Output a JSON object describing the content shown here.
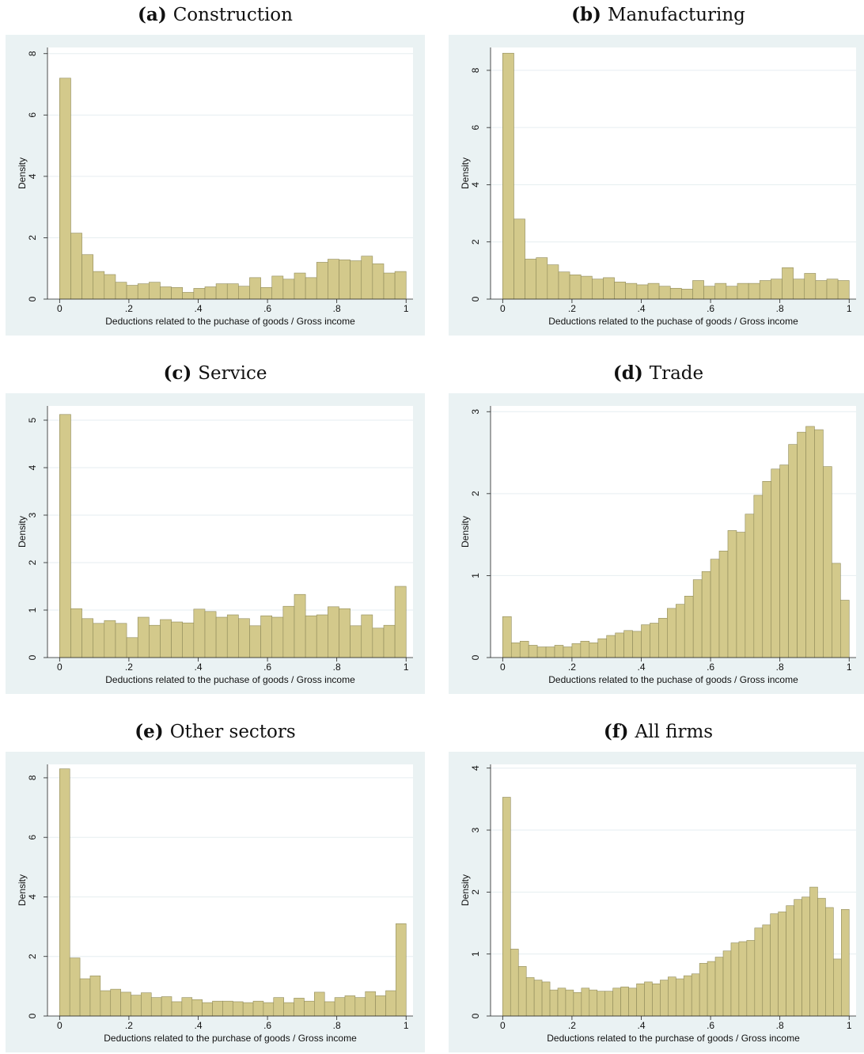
{
  "chart_data": [
    {
      "type": "histogram",
      "label": "(a)",
      "title": "Construction",
      "ylabel": "Density",
      "xlabel": "Deductions related to the puchase of goods / Gross income",
      "color": "#d3c98b",
      "grid": true,
      "bins": [
        0,
        0.0323,
        0.0645,
        0.0968,
        0.129,
        0.1613,
        0.1935,
        0.2258,
        0.2581,
        0.2903,
        0.3226,
        0.3548,
        0.3871,
        0.4194,
        0.4516,
        0.4839,
        0.5161,
        0.5484,
        0.5806,
        0.6129,
        0.6452,
        0.6774,
        0.7097,
        0.7419,
        0.7742,
        0.8065,
        0.8387,
        0.871,
        0.9032,
        0.9355,
        0.9677,
        1
      ],
      "values": [
        7.2,
        2.15,
        1.45,
        0.9,
        0.8,
        0.55,
        0.45,
        0.5,
        0.55,
        0.4,
        0.38,
        0.22,
        0.35,
        0.4,
        0.5,
        0.5,
        0.42,
        0.7,
        0.38,
        0.75,
        0.65,
        0.85,
        0.7,
        1.2,
        1.3,
        1.28,
        1.25,
        1.4,
        1.15,
        0.85,
        0.9
      ],
      "xlim": [
        -0.035,
        1.02
      ],
      "ylim": [
        0,
        8.2
      ],
      "yticks": [
        0,
        2,
        4,
        6,
        8
      ],
      "xticks": [
        0,
        {
          "value": 0.2,
          "label": ".2"
        },
        {
          "value": 0.4,
          "label": ".4"
        },
        {
          "value": 0.6,
          "label": ".6"
        },
        {
          "value": 0.8,
          "label": ".8"
        },
        1
      ]
    },
    {
      "type": "histogram",
      "label": "(b)",
      "title": "Manufacturing",
      "ylabel": "Density",
      "xlabel": "Deductions related to the puchase of goods / Gross income",
      "color": "#d3c98b",
      "grid": true,
      "bins": [
        0,
        0.0323,
        0.0645,
        0.0968,
        0.129,
        0.1613,
        0.1935,
        0.2258,
        0.2581,
        0.2903,
        0.3226,
        0.3548,
        0.3871,
        0.4194,
        0.4516,
        0.4839,
        0.5161,
        0.5484,
        0.5806,
        0.6129,
        0.6452,
        0.6774,
        0.7097,
        0.7419,
        0.7742,
        0.8065,
        0.8387,
        0.871,
        0.9032,
        0.9355,
        0.9677,
        1
      ],
      "values": [
        8.6,
        2.8,
        1.4,
        1.45,
        1.2,
        0.95,
        0.85,
        0.8,
        0.7,
        0.75,
        0.6,
        0.55,
        0.5,
        0.55,
        0.45,
        0.38,
        0.35,
        0.65,
        0.45,
        0.55,
        0.45,
        0.55,
        0.55,
        0.65,
        0.7,
        1.1,
        0.7,
        0.9,
        0.65,
        0.7,
        0.65
      ],
      "xlim": [
        -0.035,
        1.02
      ],
      "ylim": [
        0,
        8.8
      ],
      "yticks": [
        0,
        2,
        4,
        6,
        8
      ],
      "xticks": [
        0,
        {
          "value": 0.2,
          "label": ".2"
        },
        {
          "value": 0.4,
          "label": ".4"
        },
        {
          "value": 0.6,
          "label": ".6"
        },
        {
          "value": 0.8,
          "label": ".8"
        },
        1
      ]
    },
    {
      "type": "histogram",
      "label": "(c)",
      "title": "Service",
      "ylabel": "Density",
      "xlabel": "Deductions related to the puchase of goods / Gross income",
      "color": "#d3c98b",
      "grid": true,
      "bins": [
        0,
        0.0323,
        0.0645,
        0.0968,
        0.129,
        0.1613,
        0.1935,
        0.2258,
        0.2581,
        0.2903,
        0.3226,
        0.3548,
        0.3871,
        0.4194,
        0.4516,
        0.4839,
        0.5161,
        0.5484,
        0.5806,
        0.6129,
        0.6452,
        0.6774,
        0.7097,
        0.7419,
        0.7742,
        0.8065,
        0.8387,
        0.871,
        0.9032,
        0.9355,
        0.9677,
        1
      ],
      "values": [
        5.12,
        1.03,
        0.82,
        0.72,
        0.78,
        0.72,
        0.42,
        0.85,
        0.68,
        0.8,
        0.75,
        0.73,
        1.02,
        0.97,
        0.85,
        0.9,
        0.82,
        0.67,
        0.88,
        0.85,
        1.08,
        1.33,
        0.88,
        0.9,
        1.07,
        1.03,
        0.67,
        0.9,
        0.62,
        0.68,
        1.5
      ],
      "xlim": [
        -0.035,
        1.02
      ],
      "ylim": [
        0,
        5.3
      ],
      "yticks": [
        0,
        1,
        2,
        3,
        4,
        5
      ],
      "xticks": [
        0,
        {
          "value": 0.2,
          "label": ".2"
        },
        {
          "value": 0.4,
          "label": ".4"
        },
        {
          "value": 0.6,
          "label": ".6"
        },
        {
          "value": 0.8,
          "label": ".8"
        },
        1
      ]
    },
    {
      "type": "histogram",
      "label": "(d)",
      "title": "Trade",
      "ylabel": "Density",
      "xlabel": "Deductions related to the puchase of goods / Gross income",
      "color": "#d3c98b",
      "grid": true,
      "bins": [
        0,
        0.025,
        0.05,
        0.075,
        0.1,
        0.125,
        0.15,
        0.175,
        0.2,
        0.225,
        0.25,
        0.275,
        0.3,
        0.325,
        0.35,
        0.375,
        0.4,
        0.425,
        0.45,
        0.475,
        0.5,
        0.525,
        0.55,
        0.575,
        0.6,
        0.625,
        0.65,
        0.675,
        0.7,
        0.725,
        0.75,
        0.775,
        0.8,
        0.825,
        0.85,
        0.875,
        0.9,
        0.925,
        0.95,
        0.975,
        1
      ],
      "values": [
        0.5,
        0.18,
        0.2,
        0.15,
        0.13,
        0.13,
        0.15,
        0.13,
        0.17,
        0.2,
        0.18,
        0.23,
        0.27,
        0.3,
        0.33,
        0.32,
        0.4,
        0.42,
        0.48,
        0.6,
        0.65,
        0.75,
        0.95,
        1.05,
        1.2,
        1.3,
        1.55,
        1.53,
        1.75,
        1.98,
        2.15,
        2.3,
        2.35,
        2.6,
        2.75,
        2.82,
        2.78,
        2.33,
        1.15,
        0.7
      ],
      "xlim": [
        -0.035,
        1.02
      ],
      "ylim": [
        0,
        3.07
      ],
      "yticks": [
        0,
        1,
        2,
        3
      ],
      "xticks": [
        0,
        {
          "value": 0.2,
          "label": ".2"
        },
        {
          "value": 0.4,
          "label": ".4"
        },
        {
          "value": 0.6,
          "label": ".6"
        },
        {
          "value": 0.8,
          "label": ".8"
        },
        1
      ]
    },
    {
      "type": "histogram",
      "label": "(e)",
      "title": "Other sectors",
      "ylabel": "Density",
      "xlabel": "Deductions related to the purchase of goods / Gross income",
      "color": "#d3c98b",
      "grid": true,
      "bins": [
        0,
        0.0294,
        0.0588,
        0.0882,
        0.1176,
        0.1471,
        0.1765,
        0.2059,
        0.2353,
        0.2647,
        0.2941,
        0.3235,
        0.3529,
        0.3824,
        0.4118,
        0.4412,
        0.4706,
        0.5,
        0.5294,
        0.5588,
        0.5882,
        0.6176,
        0.6471,
        0.6765,
        0.7059,
        0.7353,
        0.7647,
        0.7941,
        0.8235,
        0.8529,
        0.8824,
        0.9118,
        0.9412,
        0.9706,
        1
      ],
      "values": [
        8.3,
        1.95,
        1.25,
        1.35,
        0.85,
        0.9,
        0.8,
        0.7,
        0.78,
        0.62,
        0.65,
        0.48,
        0.62,
        0.55,
        0.45,
        0.5,
        0.5,
        0.48,
        0.45,
        0.5,
        0.45,
        0.62,
        0.45,
        0.6,
        0.5,
        0.8,
        0.48,
        0.62,
        0.68,
        0.62,
        0.82,
        0.68,
        0.85,
        3.1
      ],
      "xlim": [
        -0.035,
        1.02
      ],
      "ylim": [
        0,
        8.45
      ],
      "yticks": [
        0,
        2,
        4,
        6,
        8
      ],
      "xticks": [
        0,
        {
          "value": 0.2,
          "label": ".2"
        },
        {
          "value": 0.4,
          "label": ".4"
        },
        {
          "value": 0.6,
          "label": ".6"
        },
        {
          "value": 0.8,
          "label": ".8"
        },
        1
      ]
    },
    {
      "type": "histogram",
      "label": "(f)",
      "title": "All firms",
      "ylabel": "Density",
      "xlabel": "Deductions related to the purchase of goods / Gross income",
      "color": "#d3c98b",
      "grid": true,
      "bins": [
        0,
        0.0227,
        0.0455,
        0.0682,
        0.0909,
        0.1136,
        0.1364,
        0.1591,
        0.1818,
        0.2045,
        0.2273,
        0.25,
        0.2727,
        0.2955,
        0.3182,
        0.3409,
        0.3636,
        0.3864,
        0.4091,
        0.4318,
        0.4545,
        0.4773,
        0.5,
        0.5227,
        0.5455,
        0.5682,
        0.5909,
        0.6136,
        0.6364,
        0.6591,
        0.6818,
        0.7045,
        0.7273,
        0.75,
        0.7727,
        0.7955,
        0.8182,
        0.8409,
        0.8636,
        0.8864,
        0.9091,
        0.9318,
        0.9545,
        0.9773,
        1
      ],
      "values": [
        3.53,
        1.08,
        0.8,
        0.62,
        0.58,
        0.55,
        0.42,
        0.45,
        0.42,
        0.38,
        0.45,
        0.42,
        0.4,
        0.4,
        0.45,
        0.47,
        0.45,
        0.52,
        0.55,
        0.52,
        0.58,
        0.63,
        0.6,
        0.65,
        0.68,
        0.85,
        0.88,
        0.95,
        1.05,
        1.18,
        1.2,
        1.22,
        1.42,
        1.47,
        1.65,
        1.68,
        1.78,
        1.88,
        1.92,
        2.08,
        1.9,
        1.75,
        0.92,
        1.72
      ],
      "xlim": [
        -0.035,
        1.02
      ],
      "ylim": [
        0,
        4.06
      ],
      "yticks": [
        0,
        1,
        2,
        3,
        4
      ],
      "xticks": [
        0,
        {
          "value": 0.2,
          "label": ".2"
        },
        {
          "value": 0.4,
          "label": ".4"
        },
        {
          "value": 0.6,
          "label": ".6"
        },
        {
          "value": 0.8,
          "label": ".8"
        },
        1
      ]
    }
  ]
}
